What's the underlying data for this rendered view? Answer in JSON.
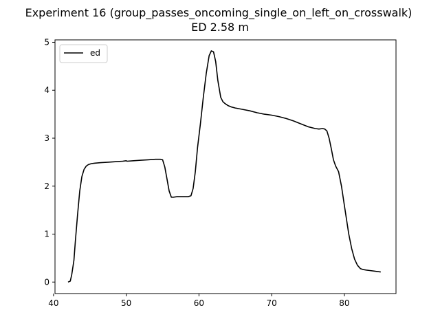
{
  "chart_data": {
    "type": "line",
    "title": "Experiment 16 (group_passes_oncoming_single_on_left_on_crosswalk)",
    "subtitle": "ED 2.58 m",
    "xlabel": "",
    "ylabel": "",
    "xlim": [
      40.2,
      87.1
    ],
    "ylim": [
      -0.24,
      5.05
    ],
    "xticks": [
      40,
      50,
      60,
      70,
      80
    ],
    "yticks": [
      0,
      1,
      2,
      3,
      4,
      5
    ],
    "grid": false,
    "legend_position": "top-left",
    "series": [
      {
        "name": "ed",
        "color": "#000000",
        "x": [
          42.0,
          42.3,
          42.5,
          42.8,
          43.0,
          43.3,
          43.6,
          43.9,
          44.2,
          44.5,
          44.8,
          45.2,
          45.7,
          46.5,
          47.5,
          48.5,
          49.5,
          50.0,
          50.1,
          51.0,
          52.0,
          53.0,
          54.0,
          54.7,
          55.0,
          55.3,
          55.6,
          55.9,
          56.2,
          56.5,
          57.0,
          57.5,
          58.0,
          58.5,
          58.9,
          59.2,
          59.5,
          59.8,
          60.2,
          60.6,
          61.0,
          61.4,
          61.7,
          62.0,
          62.3,
          62.6,
          63.0,
          63.3,
          63.6,
          64.0,
          64.5,
          65.0,
          66.0,
          67.0,
          68.0,
          69.0,
          70.0,
          71.0,
          72.0,
          73.0,
          74.0,
          75.0,
          76.0,
          76.5,
          77.0,
          77.3,
          77.6,
          77.9,
          78.2,
          78.5,
          78.8,
          79.2,
          79.6,
          80.0,
          80.3,
          80.6,
          81.0,
          81.4,
          81.8,
          82.2,
          82.6,
          83.0,
          83.5,
          84.0,
          84.5,
          85.0
        ],
        "y": [
          0.0,
          0.02,
          0.15,
          0.45,
          0.85,
          1.4,
          1.9,
          2.2,
          2.35,
          2.42,
          2.45,
          2.47,
          2.48,
          2.49,
          2.5,
          2.51,
          2.52,
          2.53,
          2.52,
          2.53,
          2.54,
          2.55,
          2.56,
          2.56,
          2.55,
          2.4,
          2.15,
          1.9,
          1.77,
          1.77,
          1.78,
          1.78,
          1.78,
          1.78,
          1.8,
          1.95,
          2.3,
          2.8,
          3.3,
          3.85,
          4.35,
          4.72,
          4.82,
          4.8,
          4.6,
          4.2,
          3.85,
          3.76,
          3.72,
          3.68,
          3.65,
          3.63,
          3.6,
          3.57,
          3.53,
          3.5,
          3.48,
          3.45,
          3.41,
          3.36,
          3.3,
          3.24,
          3.2,
          3.19,
          3.2,
          3.19,
          3.15,
          3.0,
          2.78,
          2.55,
          2.42,
          2.3,
          2.0,
          1.6,
          1.3,
          1.0,
          0.7,
          0.48,
          0.35,
          0.28,
          0.26,
          0.25,
          0.24,
          0.23,
          0.22,
          0.21
        ]
      }
    ]
  }
}
